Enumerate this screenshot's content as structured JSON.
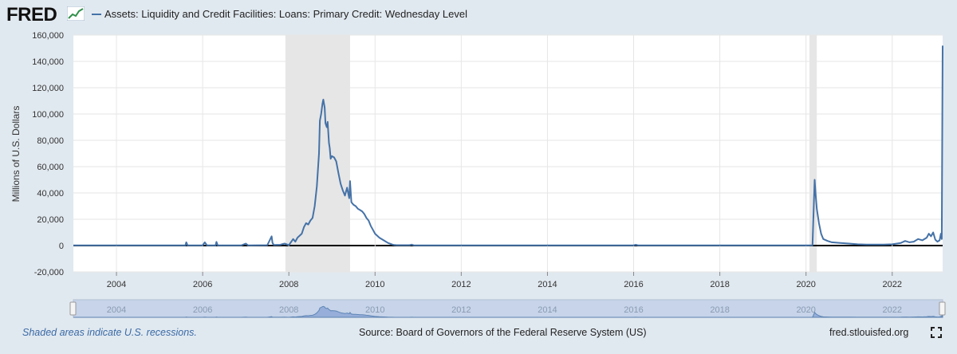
{
  "header": {
    "logo_text": "FRED",
    "series_title": "Assets: Liquidity and Credit Facilities: Loans: Primary Credit: Wednesday Level"
  },
  "footer": {
    "recession_note": "Shaded areas indicate U.S. recessions.",
    "source": "Source: Board of Governors of the Federal Reserve System (US)",
    "site": "fred.stlouisfed.org"
  },
  "colors": {
    "series": "#4572a7",
    "recession": "#e6e6e6",
    "background": "#e1e9f0",
    "plot": "#ffffff",
    "navigator": "#b8c8e6"
  },
  "icons": {
    "logo_mark": "rising-chart-icon",
    "fullscreen": "fullscreen-icon"
  },
  "chart_data": {
    "type": "line",
    "ylabel": "Millions of U.S. Dollars",
    "ylim": [
      -20000,
      160000
    ],
    "yticks": [
      -20000,
      0,
      20000,
      40000,
      60000,
      80000,
      100000,
      120000,
      140000,
      160000
    ],
    "ytick_labels": [
      "-20,000",
      "0",
      "20,000",
      "40,000",
      "60,000",
      "80,000",
      "100,000",
      "120,000",
      "140,000",
      "160,000"
    ],
    "xlim": [
      2003.0,
      2023.17
    ],
    "xticks": [
      2004,
      2006,
      2008,
      2010,
      2012,
      2014,
      2016,
      2018,
      2020,
      2022
    ],
    "xtick_labels": [
      "2004",
      "2006",
      "2008",
      "2010",
      "2012",
      "2014",
      "2016",
      "2018",
      "2020",
      "2022"
    ],
    "recessions": [
      [
        2007.92,
        2009.42
      ],
      [
        2020.08,
        2020.25
      ]
    ],
    "grid": true,
    "series": [
      {
        "x": [
          2003.0,
          2005.6,
          2005.62,
          2005.65,
          2006.0,
          2006.05,
          2006.1,
          2006.3,
          2006.32,
          2006.35,
          2006.9,
          2007.0,
          2007.05,
          2007.5,
          2007.6,
          2007.62,
          2007.65,
          2007.8,
          2007.9,
          2008.0,
          2008.1,
          2008.15,
          2008.2,
          2008.3,
          2008.35,
          2008.4,
          2008.45,
          2008.5,
          2008.55,
          2008.6,
          2008.65,
          2008.7,
          2008.72,
          2008.75,
          2008.78,
          2008.8,
          2008.83,
          2008.85,
          2008.88,
          2008.9,
          2008.93,
          2008.95,
          2008.97,
          2009.0,
          2009.05,
          2009.1,
          2009.15,
          2009.2,
          2009.25,
          2009.3,
          2009.35,
          2009.4,
          2009.42,
          2009.45,
          2009.5,
          2009.55,
          2009.6,
          2009.65,
          2009.7,
          2009.75,
          2009.8,
          2009.85,
          2009.9,
          2009.95,
          2010.0,
          2010.1,
          2010.2,
          2010.3,
          2010.4,
          2010.45,
          2010.5,
          2010.8,
          2010.85,
          2010.9,
          2016.0,
          2016.05,
          2016.1,
          2020.15,
          2020.18,
          2020.2,
          2020.22,
          2020.25,
          2020.3,
          2020.35,
          2020.4,
          2020.5,
          2020.6,
          2020.8,
          2021.0,
          2021.2,
          2021.4,
          2021.6,
          2021.8,
          2022.0,
          2022.2,
          2022.3,
          2022.4,
          2022.5,
          2022.6,
          2022.7,
          2022.8,
          2022.85,
          2022.9,
          2022.95,
          2023.0,
          2023.05,
          2023.1,
          2023.13,
          2023.15,
          2023.17
        ],
        "y": [
          200,
          200,
          2500,
          200,
          200,
          2500,
          200,
          200,
          2800,
          200,
          200,
          1500,
          200,
          300,
          7000,
          2000,
          500,
          600,
          1500,
          300,
          5000,
          3000,
          6000,
          9000,
          14000,
          17000,
          16000,
          19000,
          21000,
          30000,
          45000,
          70000,
          95000,
          100000,
          108000,
          111000,
          105000,
          93000,
          90000,
          94000,
          78000,
          74000,
          66000,
          68000,
          67000,
          64000,
          55000,
          47000,
          42000,
          38000,
          44000,
          36000,
          49000,
          33000,
          31000,
          30000,
          28000,
          27000,
          26000,
          24000,
          21000,
          19000,
          15000,
          12000,
          9000,
          6000,
          4000,
          2000,
          800,
          400,
          300,
          300,
          700,
          200,
          200,
          600,
          200,
          200,
          30000,
          50000,
          40000,
          28000,
          17000,
          9000,
          5000,
          3500,
          2500,
          2000,
          1500,
          1000,
          800,
          800,
          700,
          1000,
          2000,
          3500,
          2500,
          3000,
          5000,
          4000,
          6000,
          9000,
          7000,
          10000,
          4500,
          3000,
          4000,
          9000,
          5000,
          152000
        ]
      }
    ]
  }
}
